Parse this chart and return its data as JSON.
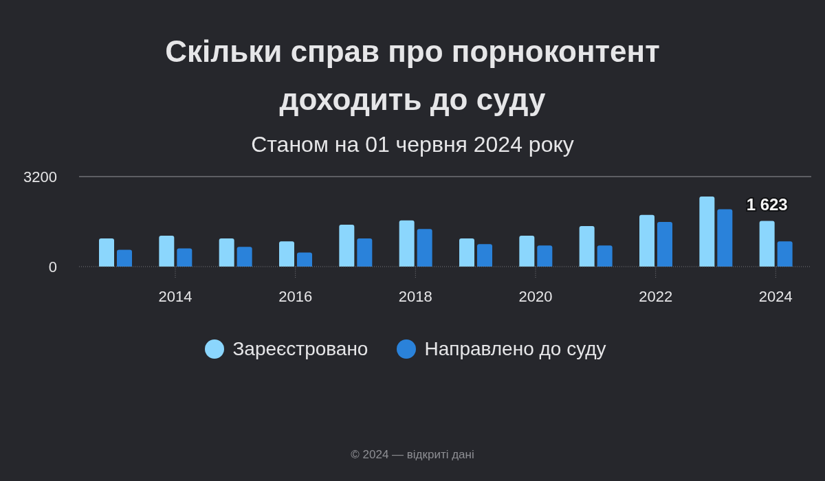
{
  "chart_data": {
    "type": "bar",
    "title": "Скільки справ про порноконтент доходить до суду",
    "subtitle": "Станом на 01 червня 2024 року",
    "categories": [
      null,
      "2014",
      null,
      "2016",
      null,
      "2018",
      null,
      "2020",
      null,
      "2022",
      null,
      "2024"
    ],
    "series": [
      {
        "name": "Зареєстровано",
        "color": "#8bd6fd",
        "values": [
          1000,
          1100,
          1000,
          900,
          1490,
          1640,
          1000,
          1100,
          1440,
          1840,
          2490,
          1623
        ],
        "value_labels": [
          null,
          null,
          null,
          null,
          null,
          null,
          null,
          null,
          null,
          null,
          null,
          "1 623"
        ]
      },
      {
        "name": "Направлено до суду",
        "color": "#2a82da",
        "values": [
          600,
          650,
          700,
          500,
          1000,
          1340,
          800,
          750,
          750,
          1590,
          2040,
          900
        ]
      }
    ],
    "ylim": [
      0,
      3200
    ],
    "yticks": [
      0,
      3200
    ],
    "grid": "y",
    "legend": "bottom",
    "annotations": [
      "© 2024 — відкриті дані"
    ]
  }
}
